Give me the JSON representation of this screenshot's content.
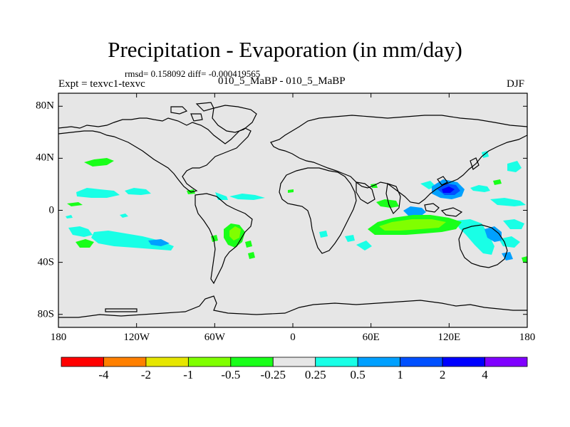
{
  "figure": {
    "title": "Precipitation - Evaporation (in mm/day)",
    "stats_line": "rmsd= 0.158092 diff= -0.000419565",
    "experiment_label": "Expt = texvc1-texvc",
    "case_label": "010_5_MaBP - 010_5_MaBP",
    "season_label": "DJF"
  },
  "map": {
    "projection": "cylindrical-equidistant",
    "lon_range": [
      -180,
      180
    ],
    "lat_range": [
      -90,
      90
    ],
    "land_fill": "#e6e6e6",
    "x_ticks": [
      {
        "lon": -180,
        "label": "180"
      },
      {
        "lon": -120,
        "label": "120W"
      },
      {
        "lon": -60,
        "label": "60W"
      },
      {
        "lon": 0,
        "label": "0"
      },
      {
        "lon": 60,
        "label": "60E"
      },
      {
        "lon": 120,
        "label": "120E"
      },
      {
        "lon": 180,
        "label": "180"
      }
    ],
    "y_ticks": [
      {
        "lat": 80,
        "label": "80N"
      },
      {
        "lat": 40,
        "label": "40N"
      },
      {
        "lat": 0,
        "label": "0"
      },
      {
        "lat": -40,
        "label": "40S"
      },
      {
        "lat": -80,
        "label": "80S"
      }
    ]
  },
  "colorbar": {
    "colors": [
      "#ff0000",
      "#ff8000",
      "#e6e600",
      "#80ff00",
      "#19ff19",
      "#e6e6e6",
      "#19ffe6",
      "#00a0ff",
      "#0050ff",
      "#0000ff",
      "#8000ff"
    ],
    "labels": [
      "-4",
      "-2",
      "-1",
      "-0.5",
      "-0.25",
      "0.25",
      "0.5",
      "1",
      "2",
      "4"
    ]
  },
  "anomaly_regions": [
    {
      "level": "0.25",
      "color": "#19ffe6",
      "lon": -157,
      "lat": 5
    },
    {
      "level": "0.25",
      "color": "#19ffe6",
      "lon": -130,
      "lat": 7
    },
    {
      "level": "0.25",
      "color": "#19ffe6",
      "lon": -43,
      "lat": 8
    },
    {
      "level": "0.25",
      "color": "#19ffe6",
      "lon": -140,
      "lat": -22
    },
    {
      "level": "0.25",
      "color": "#19ffe6",
      "lon": 145,
      "lat": 5
    },
    {
      "level": "0.25",
      "color": "#19ffe6",
      "lon": 130,
      "lat": -20
    },
    {
      "level": "0.5",
      "color": "#00a0ff",
      "lon": 105,
      "lat": -2
    },
    {
      "level": "0.5",
      "color": "#00a0ff",
      "lon": 152,
      "lat": -26
    },
    {
      "level": "1",
      "color": "#0050ff",
      "lon": 122,
      "lat": 12
    },
    {
      "level": "2",
      "color": "#0000ff",
      "lon": 118,
      "lat": 14
    },
    {
      "level": "-0.25",
      "color": "#19ff19",
      "lon": -150,
      "lat": 38
    },
    {
      "level": "-0.25",
      "color": "#19ff19",
      "lon": -165,
      "lat": -25
    },
    {
      "level": "-0.25",
      "color": "#19ff19",
      "lon": 78,
      "lat": -14
    },
    {
      "level": "-0.25",
      "color": "#19ff19",
      "lon": 48,
      "lat": 5
    },
    {
      "level": "-0.25",
      "color": "#19ff19",
      "lon": -46,
      "lat": -22
    },
    {
      "level": "-0.5",
      "color": "#80ff00",
      "lon": 80,
      "lat": -14
    },
    {
      "level": "-0.5",
      "color": "#80ff00",
      "lon": -46,
      "lat": -24
    }
  ]
}
